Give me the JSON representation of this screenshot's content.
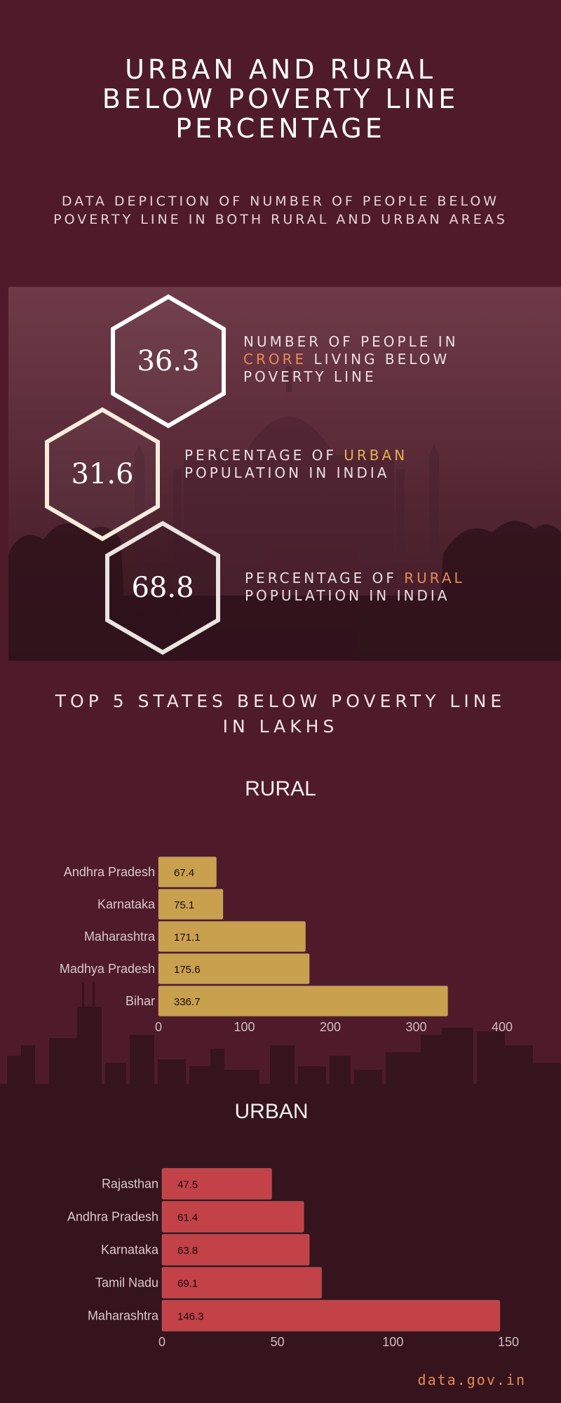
{
  "header": {
    "title_lines": [
      "URBAN AND RURAL",
      "BELOW POVERTY LINE",
      "PERCENTAGE"
    ],
    "subtitle_lines": [
      "DATA DEPICTION OF NUMBER OF PEOPLE BELOW",
      "POVERTY LINE IN BOTH RURAL AND URBAN AREAS"
    ]
  },
  "stats": [
    {
      "value": "36.3",
      "pre": "NUMBER OF PEOPLE IN",
      "highlight": "CRORE",
      "post": " LIVING BELOW",
      "line3": "POVERTY LINE"
    },
    {
      "value": "31.6",
      "pre": "PERCENTAGE OF ",
      "highlight": "URBAN",
      "line2": "POPULATION IN INDIA"
    },
    {
      "value": "68.8",
      "pre": "PERCENTAGE OF ",
      "highlight": "RURAL",
      "line2": "POPULATION IN INDIA"
    }
  ],
  "section": {
    "title_lines": [
      "TOP 5 STATES BELOW POVERTY LINE",
      "IN LAKHS"
    ]
  },
  "colors": {
    "background": "#4f1b2a",
    "rural_bar": "#c9a04e",
    "urban_bar": "#c24248",
    "accent_orange": "#e88a56",
    "accent_gold": "#e3b24f"
  },
  "chart_data": [
    {
      "type": "bar",
      "orientation": "horizontal",
      "title": "RURAL",
      "categories": [
        "Andhra Pradesh",
        "Karnataka",
        "Maharashtra",
        "Madhya Pradesh",
        "Bihar"
      ],
      "values": [
        67.4,
        75.1,
        171.1,
        175.6,
        336.7
      ],
      "value_labels": [
        "67.4",
        "75.1",
        "171.1",
        "175.6",
        "336.7"
      ],
      "xlim": [
        0,
        400
      ],
      "xticks": [
        0,
        100,
        200,
        300,
        400
      ],
      "grid": false
    },
    {
      "type": "bar",
      "orientation": "horizontal",
      "title": "URBAN",
      "categories": [
        "Rajasthan",
        "Andhra Pradesh",
        "Karnataka",
        "Tamil Nadu",
        "Maharashtra"
      ],
      "values": [
        47.5,
        61.4,
        63.8,
        69.1,
        146.3
      ],
      "value_labels": [
        "47.5",
        "61.4",
        "63.8",
        "69.1",
        "146.3"
      ],
      "xlim": [
        0,
        150
      ],
      "xticks": [
        0,
        50,
        100,
        150
      ],
      "grid": false
    }
  ],
  "footer": {
    "source": "data.gov.in"
  }
}
